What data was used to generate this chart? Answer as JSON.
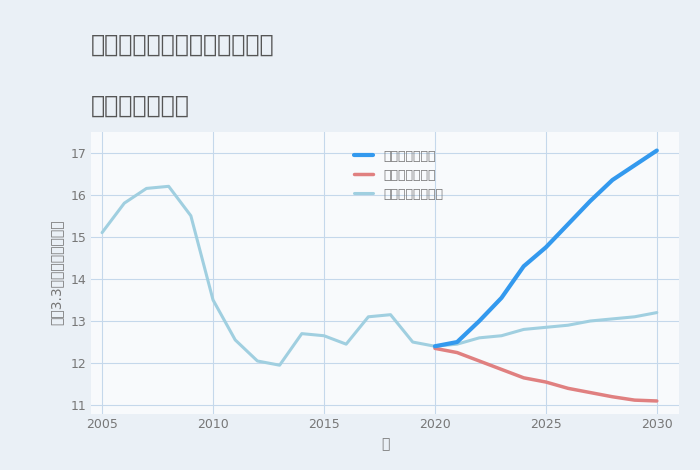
{
  "title_line1": "福岡県柳川市三橋町今古賀の",
  "title_line2": "土地の価格推移",
  "xlabel": "年",
  "ylabel": "坪（3.3㎡）単価（万円）",
  "background_color": "#eaf0f6",
  "plot_bg_color": "#f8fafc",
  "ylim": [
    10.8,
    17.5
  ],
  "xlim": [
    2004.5,
    2031
  ],
  "yticks": [
    11,
    12,
    13,
    14,
    15,
    16,
    17
  ],
  "xticks": [
    2005,
    2010,
    2015,
    2020,
    2025,
    2030
  ],
  "normal_scenario": {
    "x": [
      2005,
      2006,
      2007,
      2008,
      2009,
      2010,
      2011,
      2012,
      2013,
      2014,
      2015,
      2016,
      2017,
      2018,
      2019,
      2020,
      2021,
      2022,
      2023,
      2024,
      2025,
      2026,
      2027,
      2028,
      2029,
      2030
    ],
    "y": [
      15.1,
      15.8,
      16.15,
      16.2,
      15.5,
      13.5,
      12.55,
      12.05,
      11.95,
      12.7,
      12.65,
      12.45,
      13.1,
      13.15,
      12.5,
      12.4,
      12.45,
      12.6,
      12.65,
      12.8,
      12.85,
      12.9,
      13.0,
      13.05,
      13.1,
      13.2
    ],
    "color": "#a0cfe0",
    "linewidth": 2.2,
    "label": "ノーマルシナリオ"
  },
  "good_scenario": {
    "x": [
      2020,
      2021,
      2022,
      2023,
      2024,
      2025,
      2026,
      2027,
      2028,
      2029,
      2030
    ],
    "y": [
      12.4,
      12.5,
      13.0,
      13.55,
      14.3,
      14.75,
      15.3,
      15.85,
      16.35,
      16.7,
      17.05
    ],
    "color": "#3399ee",
    "linewidth": 3.0,
    "label": "グッドシナリオ"
  },
  "bad_scenario": {
    "x": [
      2020,
      2021,
      2022,
      2023,
      2024,
      2025,
      2026,
      2027,
      2028,
      2029,
      2030
    ],
    "y": [
      12.35,
      12.25,
      12.05,
      11.85,
      11.65,
      11.55,
      11.4,
      11.3,
      11.2,
      11.12,
      11.1
    ],
    "color": "#e08080",
    "linewidth": 2.5,
    "label": "バッドシナリオ"
  },
  "grid_color": "#c5d8eb",
  "title_color": "#555555",
  "tick_color": "#777777",
  "label_color": "#777777",
  "title_fontsize": 17,
  "axis_label_fontsize": 10,
  "tick_fontsize": 9,
  "legend_fontsize": 9
}
